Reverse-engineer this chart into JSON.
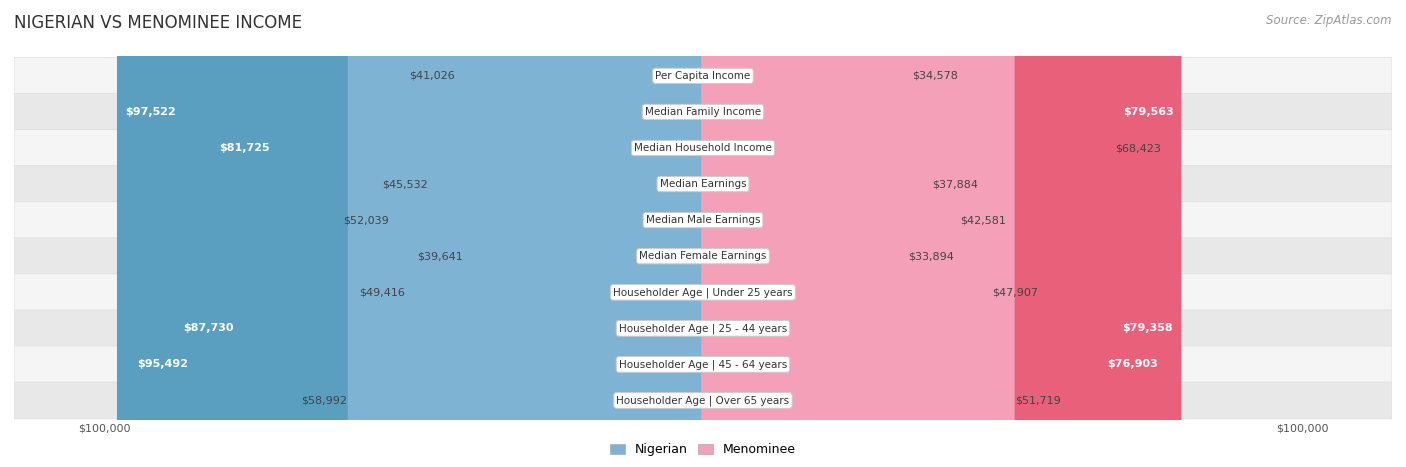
{
  "title": "NIGERIAN VS MENOMINEE INCOME",
  "source": "Source: ZipAtlas.com",
  "categories": [
    "Per Capita Income",
    "Median Family Income",
    "Median Household Income",
    "Median Earnings",
    "Median Male Earnings",
    "Median Female Earnings",
    "Householder Age | Under 25 years",
    "Householder Age | 25 - 44 years",
    "Householder Age | 45 - 64 years",
    "Householder Age | Over 65 years"
  ],
  "nigerian_values": [
    41026,
    97522,
    81725,
    45532,
    52039,
    39641,
    49416,
    87730,
    95492,
    58992
  ],
  "menominee_values": [
    34578,
    79563,
    68423,
    37884,
    42581,
    33894,
    47907,
    79358,
    76903,
    51719
  ],
  "max_val": 100000,
  "nigerian_color": "#7fb3d3",
  "nigerian_color_dark": "#5a9fc0",
  "menominee_color": "#f4a0b8",
  "menominee_color_dark": "#e8607a",
  "row_bg_light": "#f5f5f5",
  "row_bg_dark": "#e8e8e8",
  "label_box_color": "#ffffff",
  "label_box_edge": "#cccccc",
  "bar_height": 0.72,
  "xlabel_left": "$100,000",
  "xlabel_right": "$100,000",
  "legend_nigerian": "Nigerian",
  "legend_menominee": "Menominee",
  "title_fontsize": 12,
  "source_fontsize": 8.5,
  "value_fontsize": 8,
  "label_fontsize": 7.5,
  "axis_fontsize": 8,
  "large_threshold": 75000
}
